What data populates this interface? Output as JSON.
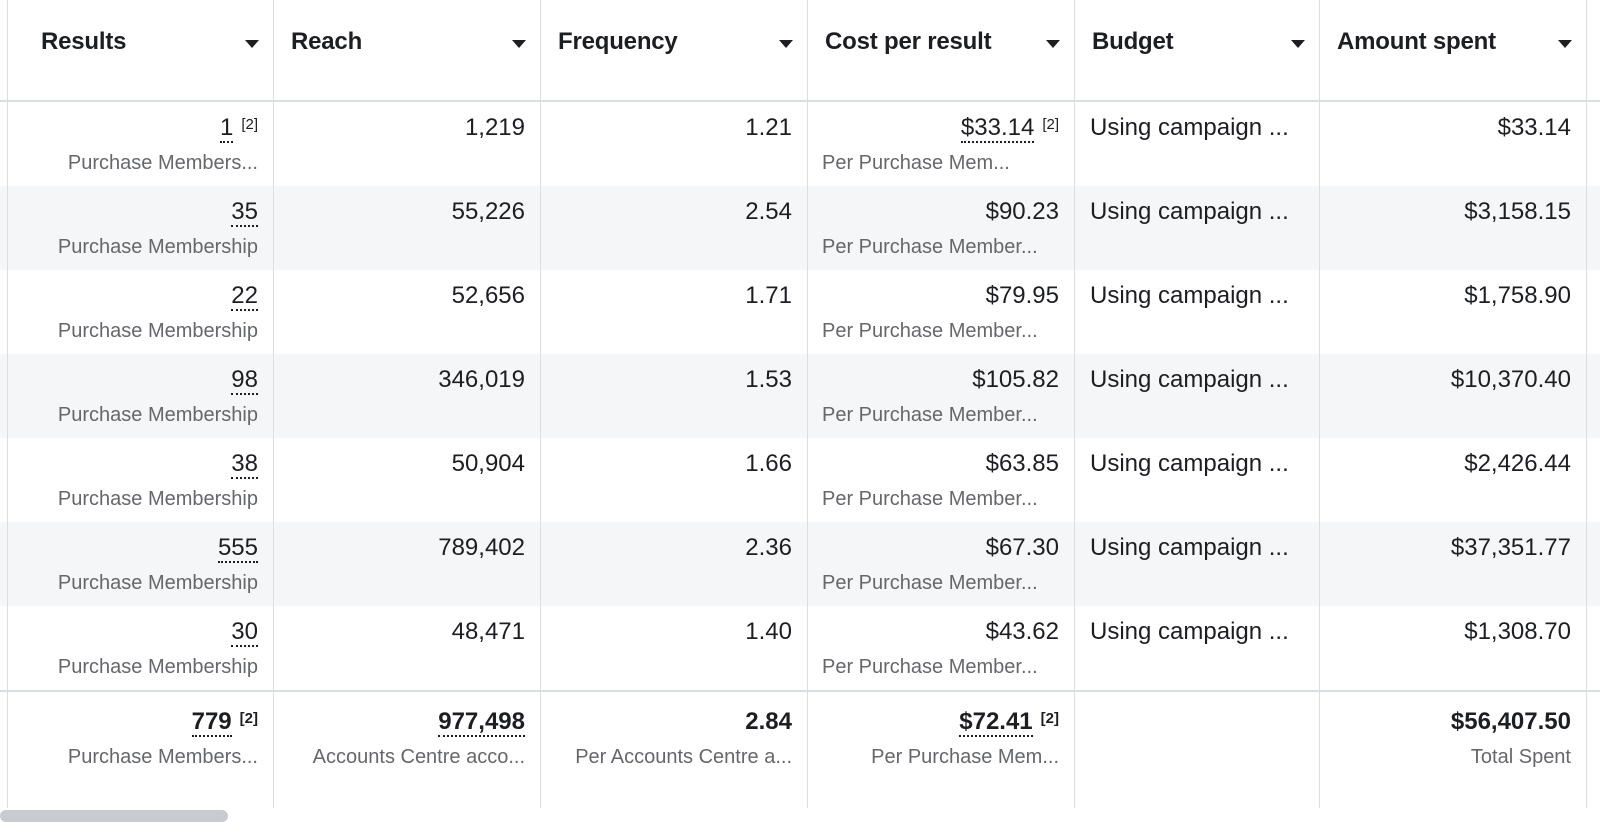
{
  "columns": [
    {
      "label": "Results"
    },
    {
      "label": "Reach"
    },
    {
      "label": "Frequency"
    },
    {
      "label": "Cost per result"
    },
    {
      "label": "Budget"
    },
    {
      "label": "Amount spent"
    }
  ],
  "rows": [
    {
      "results": "1",
      "results_note": "[2]",
      "results_sub": "Purchase Members...",
      "reach": "1,219",
      "frequency": "1.21",
      "cpr": "$33.14",
      "cpr_note": "[2]",
      "cpr_sub": "Per Purchase Mem...",
      "budget": "Using campaign ...",
      "spent": "$33.14"
    },
    {
      "results": "35",
      "results_note": "",
      "results_sub": "Purchase Membership",
      "reach": "55,226",
      "frequency": "2.54",
      "cpr": "$90.23",
      "cpr_note": "",
      "cpr_sub": "Per Purchase Member...",
      "budget": "Using campaign ...",
      "spent": "$3,158.15"
    },
    {
      "results": "22",
      "results_note": "",
      "results_sub": "Purchase Membership",
      "reach": "52,656",
      "frequency": "1.71",
      "cpr": "$79.95",
      "cpr_note": "",
      "cpr_sub": "Per Purchase Member...",
      "budget": "Using campaign ...",
      "spent": "$1,758.90"
    },
    {
      "results": "98",
      "results_note": "",
      "results_sub": "Purchase Membership",
      "reach": "346,019",
      "frequency": "1.53",
      "cpr": "$105.82",
      "cpr_note": "",
      "cpr_sub": "Per Purchase Member...",
      "budget": "Using campaign ...",
      "spent": "$10,370.40"
    },
    {
      "results": "38",
      "results_note": "",
      "results_sub": "Purchase Membership",
      "reach": "50,904",
      "frequency": "1.66",
      "cpr": "$63.85",
      "cpr_note": "",
      "cpr_sub": "Per Purchase Member...",
      "budget": "Using campaign ...",
      "spent": "$2,426.44"
    },
    {
      "results": "555",
      "results_note": "",
      "results_sub": "Purchase Membership",
      "reach": "789,402",
      "frequency": "2.36",
      "cpr": "$67.30",
      "cpr_note": "",
      "cpr_sub": "Per Purchase Member...",
      "budget": "Using campaign ...",
      "spent": "$37,351.77"
    },
    {
      "results": "30",
      "results_note": "",
      "results_sub": "Purchase Membership",
      "reach": "48,471",
      "frequency": "1.40",
      "cpr": "$43.62",
      "cpr_note": "",
      "cpr_sub": "Per Purchase Member...",
      "budget": "Using campaign ...",
      "spent": "$1,308.70"
    }
  ],
  "totals": {
    "results": "779",
    "results_note": "[2]",
    "results_sub": "Purchase Members...",
    "reach": "977,498",
    "reach_sub": "Accounts Centre acco...",
    "frequency": "2.84",
    "frequency_sub": "Per Accounts Centre a...",
    "cpr": "$72.41",
    "cpr_note": "[2]",
    "cpr_sub": "Per Purchase Mem...",
    "spent": "$56,407.50",
    "spent_sub": "Total Spent"
  }
}
